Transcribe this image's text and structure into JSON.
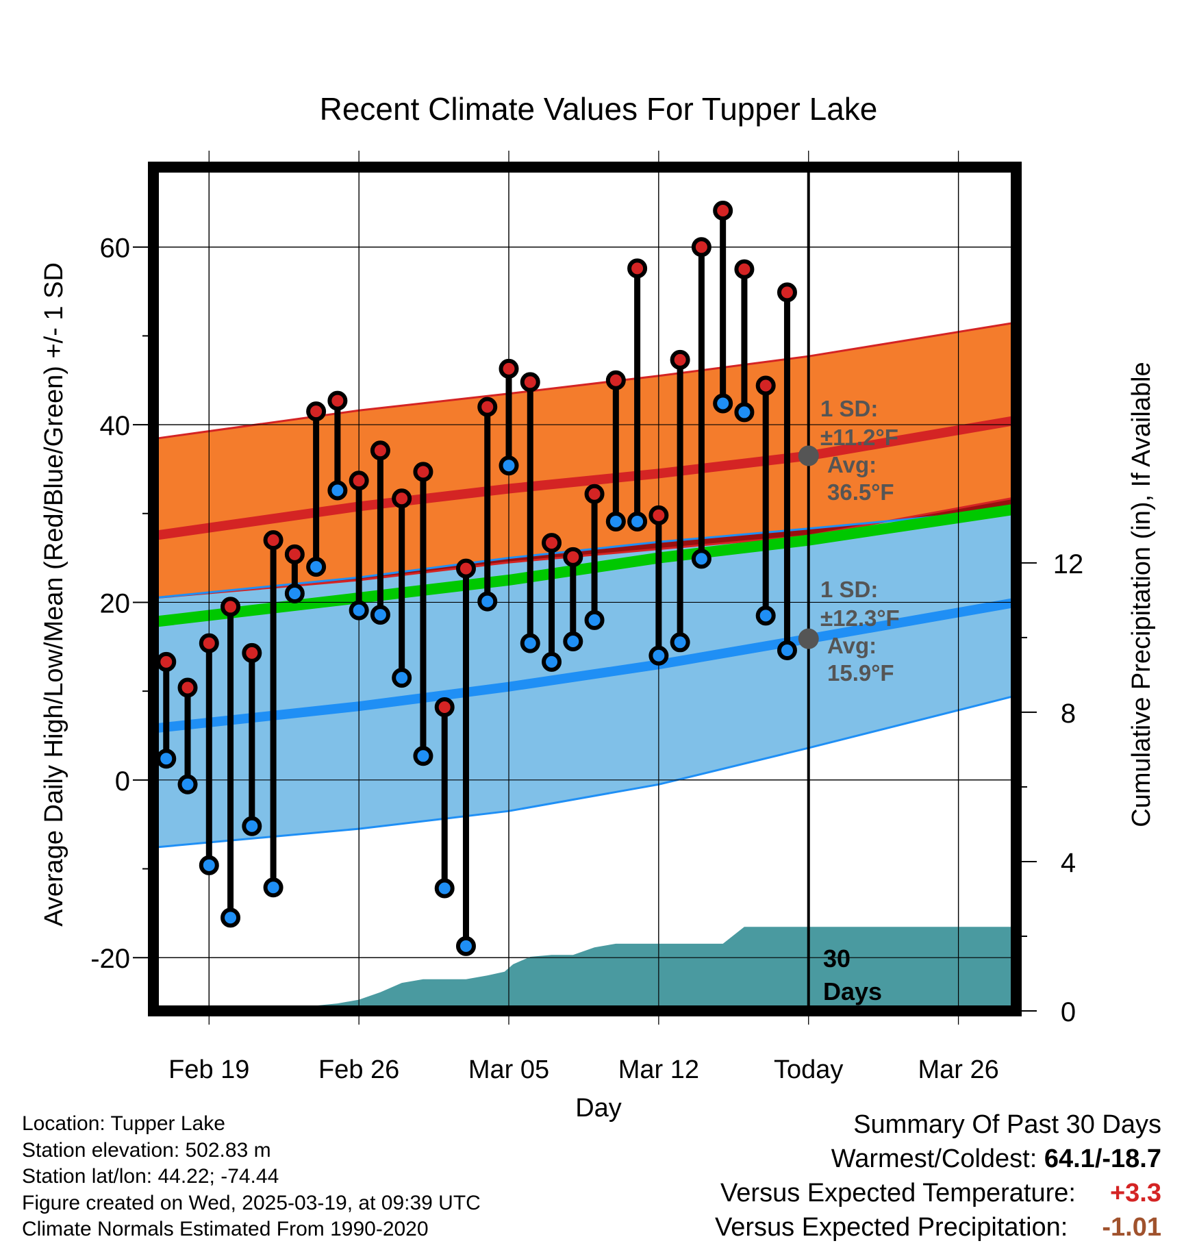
{
  "title": "Recent Climate Values For Tupper Lake",
  "axes": {
    "y_left_label": "Average Daily High/Low/Mean (Red/Blue/Green) +/- 1 SD",
    "y_right_label": "Cumulative Precipitation (in), If Available",
    "x_label": "Day",
    "y_left_ticks": [
      "60",
      "40",
      "20",
      "0",
      "-20"
    ],
    "y_right_ticks": [
      "12",
      "8",
      "4",
      "0"
    ],
    "x_ticks": [
      "Feb 19",
      "Feb 26",
      "Mar 05",
      "Mar 12",
      "Today",
      "Mar 26"
    ]
  },
  "annotations": {
    "high_sd": "1 SD:",
    "high_sd_val": "±11.2°F",
    "high_avg": "Avg:",
    "high_avg_val": "36.5°F",
    "low_sd": "1 SD:",
    "low_sd_val": "±12.3°F",
    "low_avg": "Avg:",
    "low_avg_val": "15.9°F",
    "days_num": "30",
    "days_word": "Days"
  },
  "meta": {
    "location": "Location: Tupper Lake",
    "elevation": "Station elevation: 502.83 m",
    "latlon": "Station lat/lon: 44.22; -74.44",
    "created": "Figure created on Wed, 2025-03-19, at 09:39 UTC",
    "normals": "Climate Normals Estimated From 1990-2020"
  },
  "summary": {
    "heading": "Summary Of Past 30 Days",
    "warm_cold_label": "Warmest/Coldest:",
    "warm_cold_value": "64.1/-18.7",
    "temp_label": "Versus Expected Temperature:",
    "temp_value": "+3.3",
    "precip_label": "Versus Expected Precipitation:",
    "precip_value": "-1.01"
  },
  "colors": {
    "high_band": "#f47c2c",
    "high_line": "#d42424",
    "low_band": "#80c0e8",
    "low_line": "#1f8ff5",
    "mean_line": "#00c800",
    "overlap": "#9a1010",
    "precip": "#4a9aa0",
    "high_dot": "#d42424",
    "low_dot": "#1f8ff5",
    "temp_value": "#d42424",
    "precip_value": "#a0522d",
    "annotation": "#555555"
  },
  "chart_data": {
    "type": "line",
    "x_unit": "day offset from Feb 19",
    "xlim": [
      -2.6,
      37.7
    ],
    "ylim": [
      -26,
      69
    ],
    "y2lim": [
      0,
      22.6
    ],
    "today_x": 28,
    "tick_days": [
      0,
      7,
      14,
      21,
      28,
      35
    ],
    "normals": {
      "x": [
        -2.6,
        7.0,
        14.0,
        21.0,
        28.0,
        37.7
      ],
      "high_mean": [
        27.5,
        30.8,
        32.8,
        34.5,
        36.5,
        40.5
      ],
      "high_upper": [
        38.4,
        41.6,
        43.5,
        45.5,
        47.7,
        51.5
      ],
      "high_lower": [
        20.5,
        22.5,
        24.5,
        26.0,
        27.5,
        31.8
      ],
      "low_mean": [
        5.8,
        8.3,
        10.5,
        13.0,
        15.9,
        20.0
      ],
      "low_upper": [
        20.5,
        22.8,
        25.0,
        26.8,
        28.3,
        30.5
      ],
      "low_lower": [
        -7.6,
        -5.5,
        -3.5,
        -0.5,
        3.6,
        9.5
      ],
      "avg_mean": [
        17.8,
        20.5,
        22.5,
        25.0,
        27.0,
        30.5
      ]
    },
    "daily": {
      "x": [
        -2,
        -1,
        0,
        1,
        2,
        3,
        4,
        5,
        6,
        7,
        8,
        9,
        10,
        11,
        12,
        13,
        14,
        15,
        16,
        17,
        18,
        19,
        20,
        21,
        22,
        23,
        24,
        25,
        26,
        27
      ],
      "high": [
        13.3,
        10.4,
        15.4,
        19.5,
        14.3,
        27.0,
        25.4,
        41.5,
        42.7,
        33.7,
        37.1,
        31.7,
        34.7,
        8.2,
        23.8,
        42.0,
        46.3,
        44.8,
        26.7,
        25.1,
        32.2,
        45.0,
        57.6,
        29.8,
        47.3,
        60.0,
        64.1,
        57.5,
        44.4,
        54.9
      ],
      "low": [
        2.4,
        -0.5,
        -9.6,
        -15.5,
        -5.2,
        -12.1,
        21.0,
        24.0,
        32.6,
        19.1,
        18.6,
        11.5,
        2.7,
        -12.2,
        -18.7,
        20.1,
        35.4,
        15.4,
        13.3,
        15.6,
        18.0,
        29.1,
        29.1,
        14.0,
        15.5,
        24.9,
        42.4,
        41.4,
        18.5,
        14.6
      ]
    },
    "precip": {
      "x": [
        2.5,
        6.0,
        7.0,
        8.0,
        9.0,
        10.0,
        12.0,
        13.0,
        13.8,
        14.2,
        15.0,
        16.0,
        17.0,
        18.0,
        19.0,
        20.0,
        22.0,
        23.0,
        24.0,
        25.0,
        26.0,
        27.0,
        28.0,
        37.7
      ],
      "cumulative": [
        0.0,
        0.2,
        0.3,
        0.5,
        0.75,
        0.85,
        0.85,
        0.95,
        1.05,
        1.25,
        1.45,
        1.5,
        1.5,
        1.7,
        1.8,
        1.8,
        1.8,
        1.8,
        1.8,
        2.25,
        2.25,
        2.25,
        2.25,
        2.25
      ]
    }
  }
}
